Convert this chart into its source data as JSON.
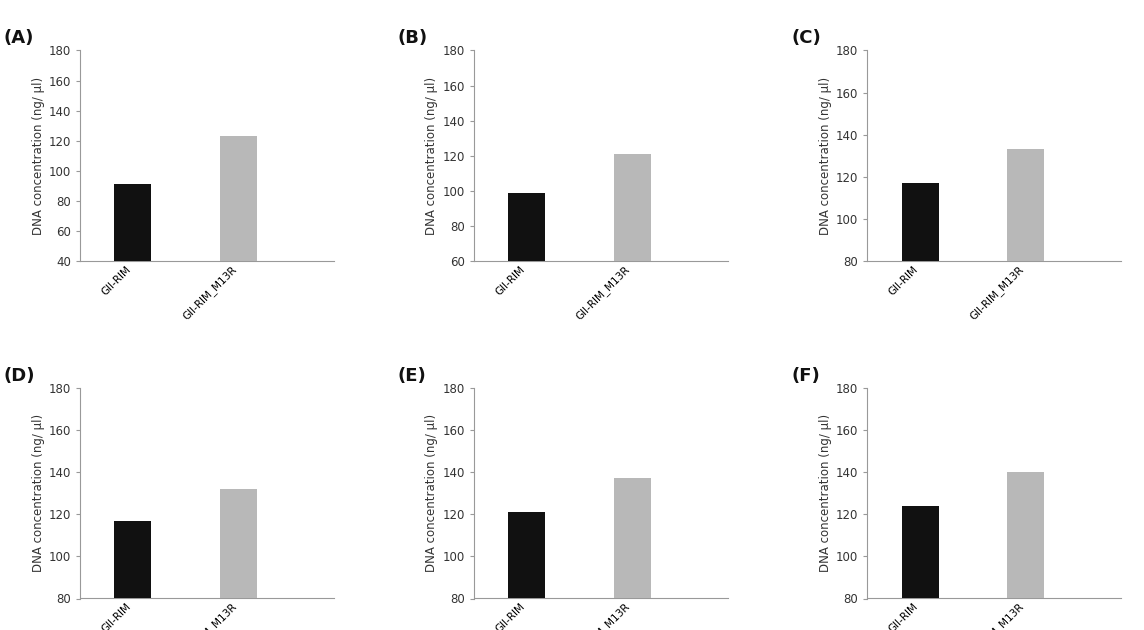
{
  "panels": [
    {
      "label": "(A)",
      "values": [
        91,
        123
      ],
      "ylim": [
        40,
        180
      ],
      "yticks": [
        40,
        60,
        80,
        100,
        120,
        140,
        160,
        180
      ]
    },
    {
      "label": "(B)",
      "values": [
        99,
        121
      ],
      "ylim": [
        60,
        180
      ],
      "yticks": [
        60,
        80,
        100,
        120,
        140,
        160,
        180
      ]
    },
    {
      "label": "(C)",
      "values": [
        117,
        133
      ],
      "ylim": [
        80,
        180
      ],
      "yticks": [
        80,
        100,
        120,
        140,
        160,
        180
      ]
    },
    {
      "label": "(D)",
      "values": [
        117,
        132
      ],
      "ylim": [
        80,
        180
      ],
      "yticks": [
        80,
        100,
        120,
        140,
        160,
        180
      ]
    },
    {
      "label": "(E)",
      "values": [
        121,
        137
      ],
      "ylim": [
        80,
        180
      ],
      "yticks": [
        80,
        100,
        120,
        140,
        160,
        180
      ]
    },
    {
      "label": "(F)",
      "values": [
        124,
        140
      ],
      "ylim": [
        80,
        180
      ],
      "yticks": [
        80,
        100,
        120,
        140,
        160,
        180
      ]
    }
  ],
  "categories": [
    "GII-RIM",
    "GII-RIM_M13R"
  ],
  "bar_colors": [
    "#111111",
    "#b8b8b8"
  ],
  "ylabel": "DNA concentration (ng/ μl)",
  "background_color": "#ffffff",
  "bar_width": 0.35,
  "tick_fontsize": 8.5,
  "ylabel_fontsize": 8.5,
  "xtick_fontsize": 7.5,
  "panel_label_fontsize": 13
}
